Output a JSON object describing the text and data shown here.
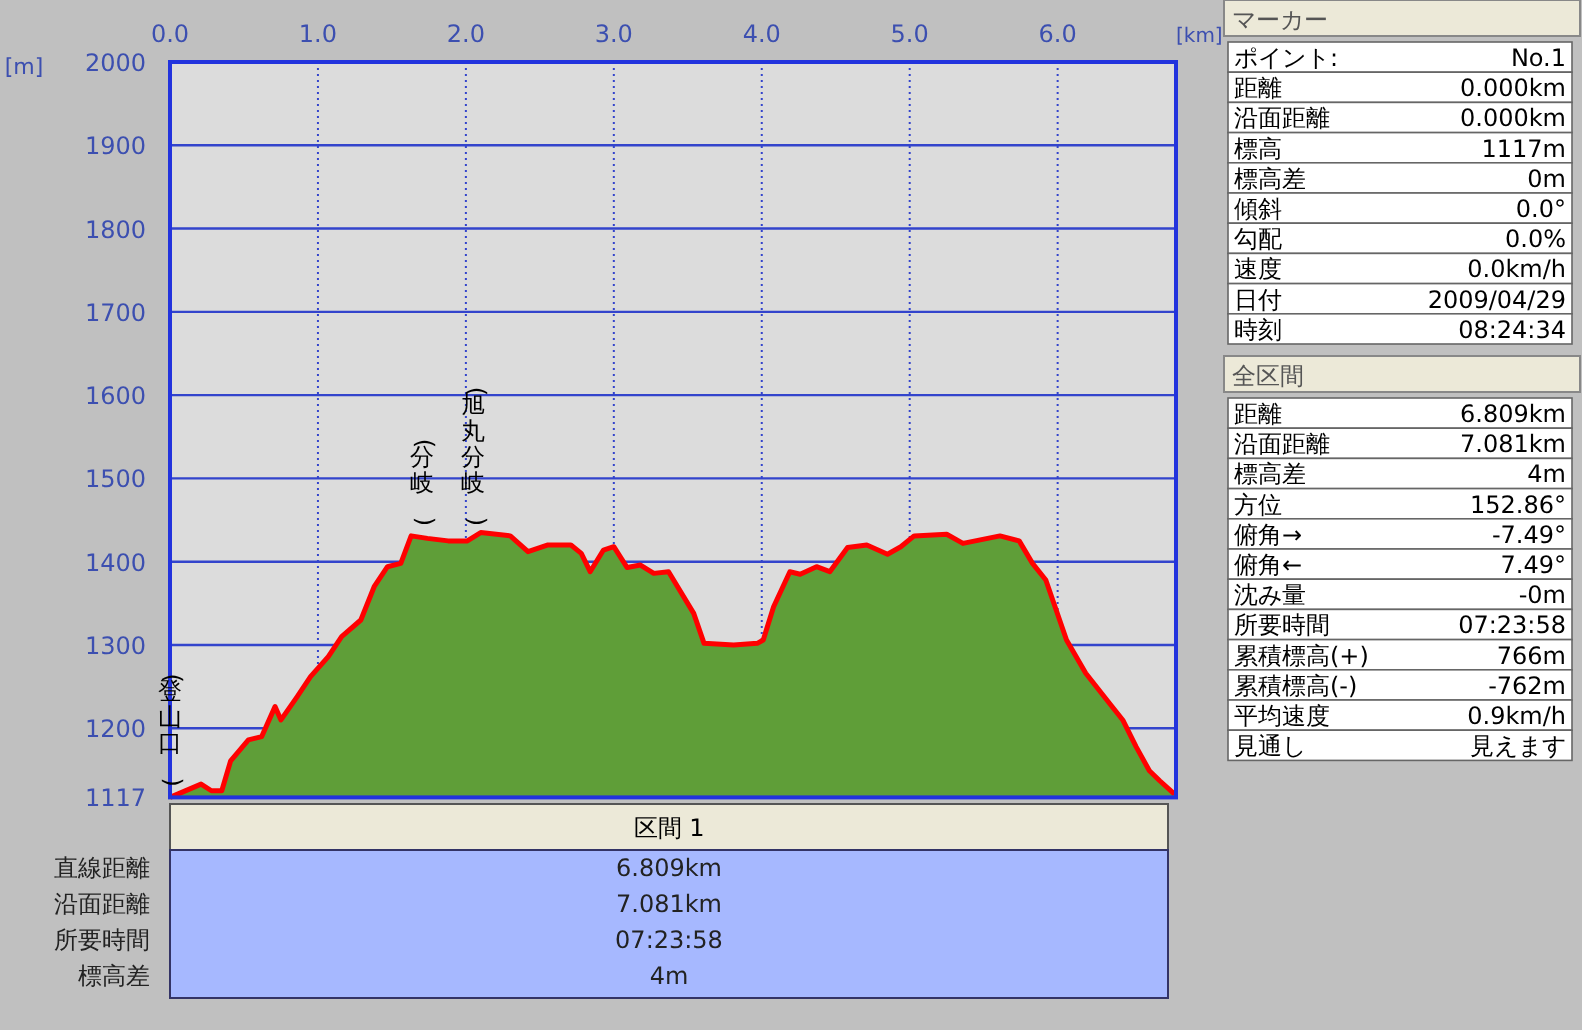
{
  "chart_data": [
    {
      "type": "area",
      "xlabel": "[km]",
      "ylabel": "[m]",
      "xlim": [
        0,
        6.8
      ],
      "ylim": [
        1117,
        2000
      ],
      "xticks": [
        {
          "value": 0,
          "label": "0.0"
        },
        {
          "value": 1,
          "label": "1.0"
        },
        {
          "value": 2,
          "label": "2.0"
        },
        {
          "value": 3,
          "label": "3.0"
        },
        {
          "value": 4,
          "label": "4.0"
        },
        {
          "value": 5,
          "label": "5.0"
        },
        {
          "value": 6,
          "label": "6.0"
        }
      ],
      "yticks": [
        1117,
        1200,
        1300,
        1400,
        1500,
        1600,
        1700,
        1800,
        1900,
        2000
      ],
      "grid": true,
      "x": [
        0,
        0.21,
        0.28,
        0.35,
        0.41,
        0.53,
        0.62,
        0.71,
        0.75,
        0.86,
        0.95,
        1.07,
        1.16,
        1.29,
        1.38,
        1.47,
        1.56,
        1.63,
        1.74,
        1.88,
        2.01,
        2.1,
        2.3,
        2.42,
        2.55,
        2.71,
        2.78,
        2.84,
        2.93,
        3.0,
        3.09,
        3.18,
        3.27,
        3.37,
        3.54,
        3.61,
        3.81,
        3.97,
        4.01,
        4.08,
        4.19,
        4.26,
        4.37,
        4.46,
        4.58,
        4.71,
        4.85,
        4.94,
        5.03,
        5.25,
        5.36,
        5.61,
        5.74,
        5.83,
        5.92,
        6.06,
        6.19,
        6.35,
        6.44,
        6.53,
        6.62,
        6.69,
        6.79
      ],
      "series": [
        {
          "color": "#5f9e38",
          "values": [
            1117,
            1133,
            1125,
            1125,
            1161,
            1186,
            1190,
            1226,
            1210,
            1238,
            1262,
            1286,
            1310,
            1330,
            1370,
            1394,
            1398,
            1431,
            1428,
            1425,
            1425,
            1435,
            1431,
            1412,
            1420,
            1420,
            1410,
            1388,
            1414,
            1418,
            1393,
            1396,
            1386,
            1388,
            1338,
            1302,
            1300,
            1302,
            1306,
            1346,
            1388,
            1385,
            1394,
            1388,
            1417,
            1420,
            1409,
            1418,
            1431,
            1433,
            1422,
            1431,
            1425,
            1398,
            1378,
            1306,
            1266,
            1230,
            1210,
            1178,
            1149,
            1137,
            1121
          ]
        }
      ],
      "annotations": [
        {
          "text": "(登山口)",
          "x": 0,
          "y": 1117
        },
        {
          "text": "(分岐)",
          "x": 1.7,
          "y": 1430
        },
        {
          "text": "(旭丸分岐)",
          "x": 2.05,
          "y": 1430
        }
      ]
    },
    {
      "type": "other",
      "title": "マーカー",
      "annotations": [
        "ポイント:",
        "No.1",
        "距離",
        "0.000km",
        "沿面距離",
        "0.000km",
        "標高",
        "1117m",
        "標高差",
        "0m",
        "傾斜",
        "0.0°",
        "勾配",
        "0.0%",
        "速度",
        "0.0km/h",
        "日付",
        "2009/04/29",
        "時刻",
        "08:24:34"
      ]
    },
    {
      "type": "other",
      "title": "全区間",
      "annotations": [
        "距離",
        "6.809km",
        "沿面距離",
        "7.081km",
        "標高差",
        "4m",
        "方位",
        "152.86°",
        "俯角→",
        "-7.49°",
        "俯角←",
        "7.49°",
        "沈み量",
        "-0m",
        "所要時間",
        "07:23:58",
        "累積標高(+)",
        "766m",
        "累積標高(-)",
        "-762m",
        "平均速度",
        "0.9km/h",
        "見通し",
        "見えます"
      ]
    },
    {
      "type": "other",
      "title": "区間 1",
      "annotations": [
        "直線距離",
        "6.809km",
        "沿面距離",
        "7.081km",
        "所要時間",
        "07:23:58",
        "標高差",
        "4m"
      ]
    }
  ]
}
